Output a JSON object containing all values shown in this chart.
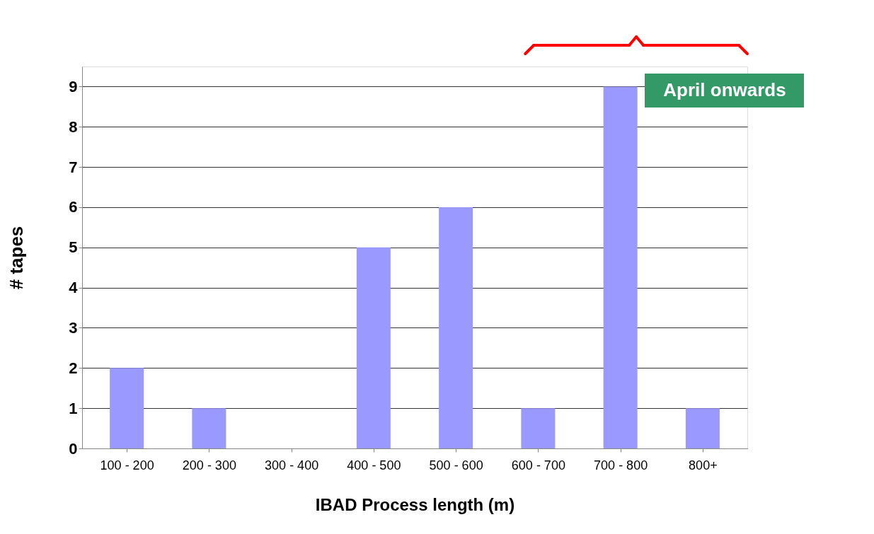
{
  "chart_data": {
    "type": "bar",
    "xlabel": "IBAD Process length (m)",
    "ylabel": "# tapes",
    "categories": [
      "100 - 200",
      "200 - 300",
      "300 - 400",
      "400 - 500",
      "500 - 600",
      "600 - 700",
      "700 - 800",
      "800+"
    ],
    "values": [
      2,
      1,
      0,
      5,
      6,
      1,
      9,
      1
    ],
    "color": "#9999ff",
    "ylim": [
      0,
      9.5
    ],
    "yticks": [
      0,
      1,
      2,
      3,
      4,
      5,
      6,
      7,
      8,
      9
    ],
    "grid": "y",
    "annotations": [
      "April onwards"
    ]
  }
}
